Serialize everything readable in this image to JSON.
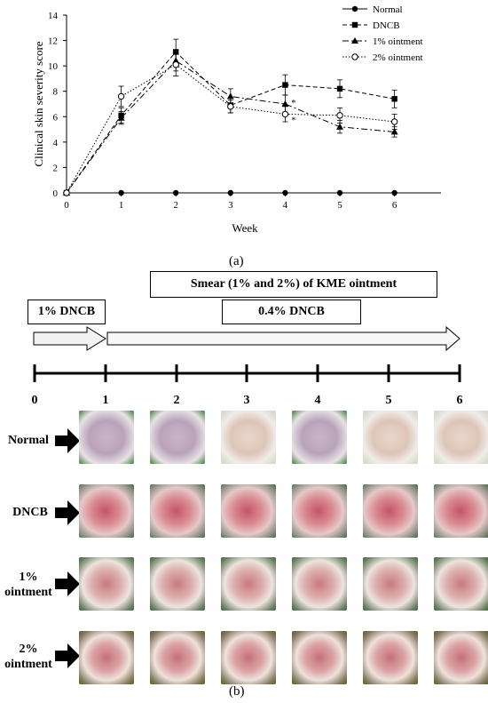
{
  "chart_data": {
    "type": "line",
    "ylabel": "Clinical skin severity score",
    "xlabel": "Week",
    "x": [
      0,
      1,
      2,
      3,
      4,
      5,
      6
    ],
    "xticks": [
      "0",
      "1",
      "2",
      "3",
      "4",
      "5",
      "6"
    ],
    "yticks": [
      "0",
      "2",
      "4",
      "6",
      "8",
      "10",
      "12",
      "14"
    ],
    "ylim": [
      0,
      14
    ],
    "legend_position": "top-right",
    "series": [
      {
        "name": "Normal",
        "values": [
          0,
          0,
          0,
          0,
          0,
          0,
          0
        ],
        "errors": [
          0,
          0,
          0,
          0,
          0,
          0,
          0
        ],
        "marker": "filled-circle",
        "dash": "solid"
      },
      {
        "name": "DNCB",
        "values": [
          0,
          6.1,
          11.1,
          6.9,
          8.5,
          8.2,
          7.4
        ],
        "errors": [
          0,
          0.6,
          1.0,
          0.6,
          0.8,
          0.7,
          0.7
        ],
        "marker": "filled-square",
        "dash": "dashed"
      },
      {
        "name": "1% ointment",
        "values": [
          0,
          5.9,
          10.4,
          7.6,
          7.0,
          5.2,
          4.8
        ],
        "errors": [
          0,
          0.5,
          0.8,
          0.6,
          0.7,
          0.5,
          0.4
        ],
        "marker": "filled-triangle",
        "dash": "dashdot"
      },
      {
        "name": "2% ointment",
        "values": [
          0,
          7.6,
          10.1,
          6.8,
          6.2,
          6.1,
          5.6
        ],
        "errors": [
          0,
          0.8,
          0.9,
          0.5,
          0.6,
          0.6,
          0.6
        ],
        "marker": "open-circle",
        "dash": "dotted"
      }
    ],
    "annotations": [
      {
        "text": "*",
        "x": 4,
        "series": "1% ointment"
      },
      {
        "text": "*",
        "x": 4,
        "series": "2% ointment"
      }
    ]
  },
  "panel_a_label": "(a)",
  "panel_b_label": "(b)",
  "timeline": {
    "smear_label": "Smear (1% and 2%) of  KME ointment",
    "dncb1_label": "1% DNCB",
    "dncb04_label": "0.4% DNCB",
    "week_labels": [
      "0",
      "1",
      "2",
      "3",
      "4",
      "5",
      "6"
    ]
  },
  "rows": [
    {
      "label_line1": "Normal",
      "label_line2": ""
    },
    {
      "label_line1": "DNCB",
      "label_line2": ""
    },
    {
      "label_line1": "1%",
      "label_line2": "ointment"
    },
    {
      "label_line1": "2%",
      "label_line2": "ointment"
    }
  ]
}
